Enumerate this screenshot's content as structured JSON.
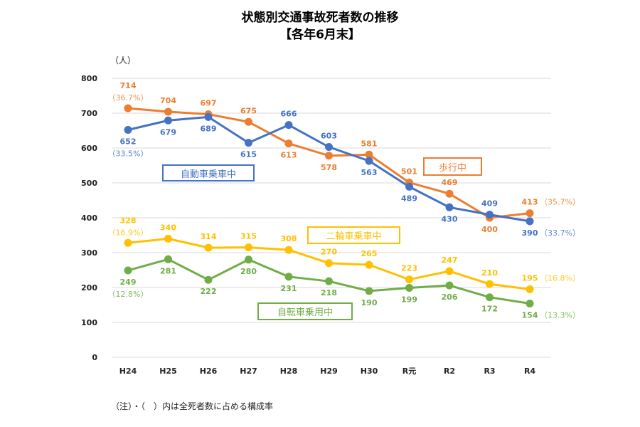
{
  "chart_data": {
    "type": "line",
    "title": "状態別交通事故死者数の推移",
    "subtitle": "【各年6月末】",
    "ylabel": "（人）",
    "categories": [
      "H24",
      "H25",
      "H26",
      "H27",
      "H28",
      "H29",
      "H30",
      "R元",
      "R2",
      "R3",
      "R4"
    ],
    "ylim": [
      0,
      800
    ],
    "yticks": [
      0,
      100,
      200,
      300,
      400,
      500,
      600,
      700,
      800
    ],
    "grid": true,
    "series": [
      {
        "name": "歩行中",
        "color": "#ED7D31",
        "values": [
          714,
          704,
          697,
          675,
          613,
          578,
          581,
          501,
          469,
          400,
          413
        ],
        "first_pct": "（36.7%）",
        "last_pct": "（35.7%）"
      },
      {
        "name": "自動車乗車中",
        "color": "#4472C4",
        "values": [
          652,
          679,
          689,
          615,
          666,
          603,
          563,
          489,
          430,
          409,
          390
        ],
        "first_pct": "（33.5%）",
        "last_pct": "（33.7%）"
      },
      {
        "name": "二輪車乗車中",
        "color": "#FFC000",
        "values": [
          328,
          340,
          314,
          315,
          308,
          270,
          265,
          223,
          247,
          210,
          195
        ],
        "first_pct": "（16.9%）",
        "last_pct": "（16.8%）"
      },
      {
        "name": "自転車乗用中",
        "color": "#70AD47",
        "values": [
          249,
          281,
          222,
          280,
          231,
          218,
          190,
          199,
          206,
          172,
          154
        ],
        "first_pct": "（12.8%）",
        "last_pct": "（13.3%）"
      }
    ],
    "note": "（注）・（　）内は全死者数に占める構成率"
  }
}
